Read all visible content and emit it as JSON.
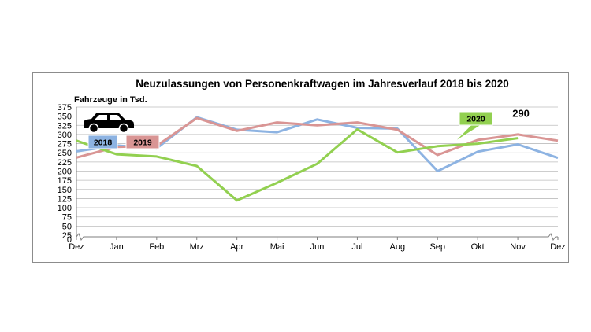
{
  "chart_data": {
    "type": "line",
    "title": "Neuzulassungen von Personenkraftwagen im Jahresverlauf 2018 bis 2020",
    "ylabel": "Fahrzeuge in Tsd.",
    "xlabel": "",
    "ylim": [
      25,
      375
    ],
    "y_ticks": [
      25,
      50,
      75,
      100,
      125,
      150,
      175,
      200,
      225,
      250,
      275,
      300,
      325,
      350,
      375
    ],
    "y_axis_break": true,
    "grid": true,
    "categories": [
      "Dez",
      "Jan",
      "Feb",
      "Mrz",
      "Apr",
      "Mai",
      "Jun",
      "Jul",
      "Aug",
      "Sep",
      "Okt",
      "Nov",
      "Dez"
    ],
    "series": [
      {
        "name": "2018",
        "color": "#8db3e2",
        "values": [
          254,
          270,
          262,
          347,
          313,
          306,
          341,
          318,
          316,
          200,
          253,
          273,
          236
        ]
      },
      {
        "name": "2019",
        "color": "#d99594",
        "values": [
          237,
          266,
          269,
          345,
          310,
          333,
          325,
          333,
          313,
          244,
          285,
          300,
          283
        ]
      },
      {
        "name": "2020",
        "color": "#92d050",
        "values": [
          283,
          246,
          240,
          214,
          120,
          168,
          220,
          314,
          251,
          268,
          275,
          290,
          null
        ]
      }
    ],
    "annotations": [
      {
        "text": "290",
        "series": "2020",
        "category_index": 11
      }
    ],
    "legend": "callouts"
  },
  "icons": {
    "car": "car-icon"
  }
}
